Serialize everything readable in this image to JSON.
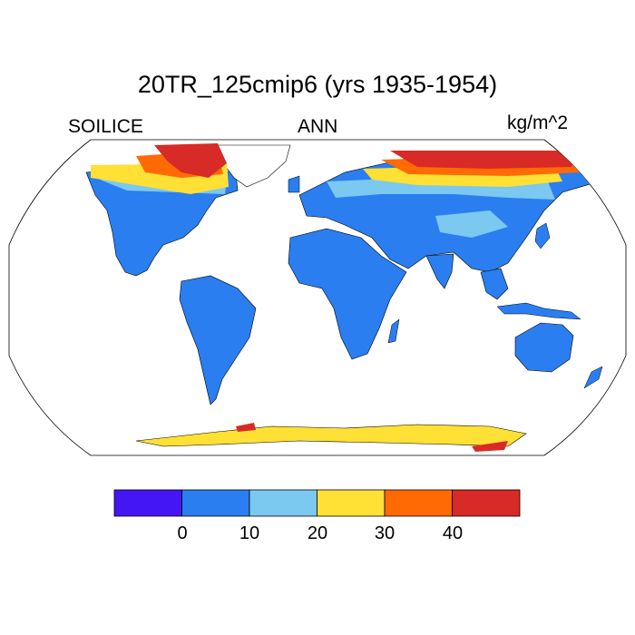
{
  "title": "20TR_125cmip6 (yrs 1935-1954)",
  "left_label": "SOILICE",
  "center_label": "ANN",
  "right_label": "kg/m^2",
  "projection": "Robinson",
  "colorbar": {
    "colors": [
      "#4416f3",
      "#2a7ef0",
      "#7bc8f0",
      "#ffe034",
      "#ff6a05",
      "#d82a26"
    ],
    "tick_labels": [
      "0",
      "10",
      "20",
      "30",
      "40"
    ]
  },
  "legend_colors": {
    "land_mostly": "#2a7ef0",
    "high_latitude_low": "#7bc8f0",
    "high_latitude_mid": "#ffe034",
    "high_latitude_high": "#ff6a05",
    "high_latitude_max": "#d82a26"
  }
}
